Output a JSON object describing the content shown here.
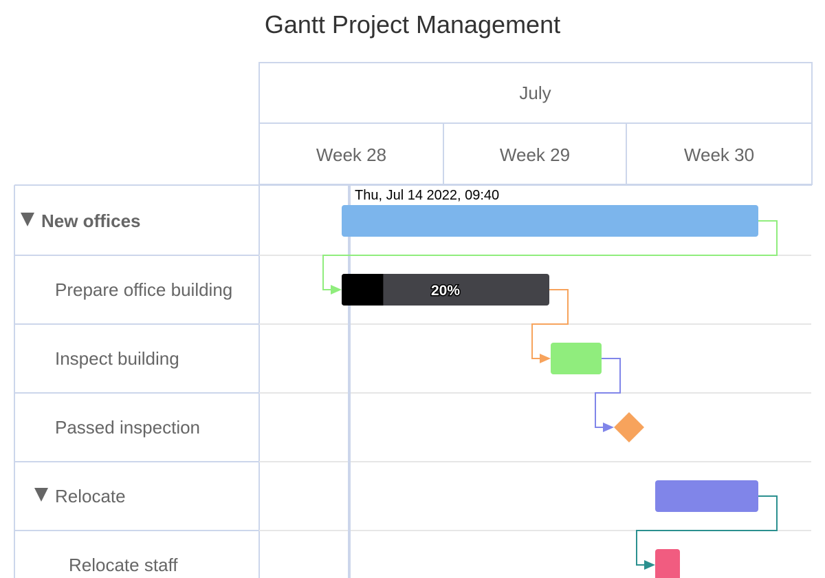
{
  "chart_data": {
    "type": "gantt",
    "title": "Gantt Project Management",
    "header": {
      "month": "July",
      "weeks": [
        "Week 28",
        "Week 29",
        "Week 30"
      ]
    },
    "axis": {
      "start": "2022-07-09",
      "end": "2022-07-31"
    },
    "current_date_label": "Thu, Jul 14 2022, 09:40",
    "current_date": "2022-07-14T09:40",
    "tasks": [
      {
        "name": "New offices",
        "level": 0,
        "collapsible": true,
        "bold": true,
        "start": "2022-07-12",
        "end": "2022-07-28",
        "color": "#7cb5ec",
        "kind": "bar"
      },
      {
        "name": "Prepare office building",
        "level": 1,
        "start": "2022-07-12",
        "end": "2022-07-20",
        "color": "#434348",
        "completed": 0.2,
        "completed_label": "20%",
        "kind": "bar"
      },
      {
        "name": "Inspect building",
        "level": 1,
        "start": "2022-07-20",
        "end": "2022-07-22",
        "color": "#90ed7d",
        "kind": "bar"
      },
      {
        "name": "Passed inspection",
        "level": 1,
        "date": "2022-07-23",
        "color": "#f7a35c",
        "kind": "milestone"
      },
      {
        "name": "Relocate",
        "level": 1,
        "collapsible": true,
        "start": "2022-07-24",
        "end": "2022-07-28",
        "color": "#8085e9",
        "kind": "bar"
      },
      {
        "name": "Relocate staff",
        "level": 2,
        "start": "2022-07-24",
        "end": "2022-07-25",
        "color": "#f15c80",
        "kind": "bar"
      }
    ],
    "dependencies": [
      {
        "from": 1,
        "to": 2,
        "color": "#90ed7d"
      },
      {
        "from": 2,
        "to": 3,
        "color": "#f7a35c"
      },
      {
        "from": 3,
        "to": 4,
        "color": "#8085e9"
      },
      {
        "from": 5,
        "to": 6,
        "color": "#2b908f"
      }
    ],
    "colors": {
      "grid": "#ccd6eb",
      "row_line": "#e6e6e6",
      "text": "#666666",
      "title": "#333333",
      "completed": "#000000",
      "current_line": "#ccd6eb"
    }
  }
}
